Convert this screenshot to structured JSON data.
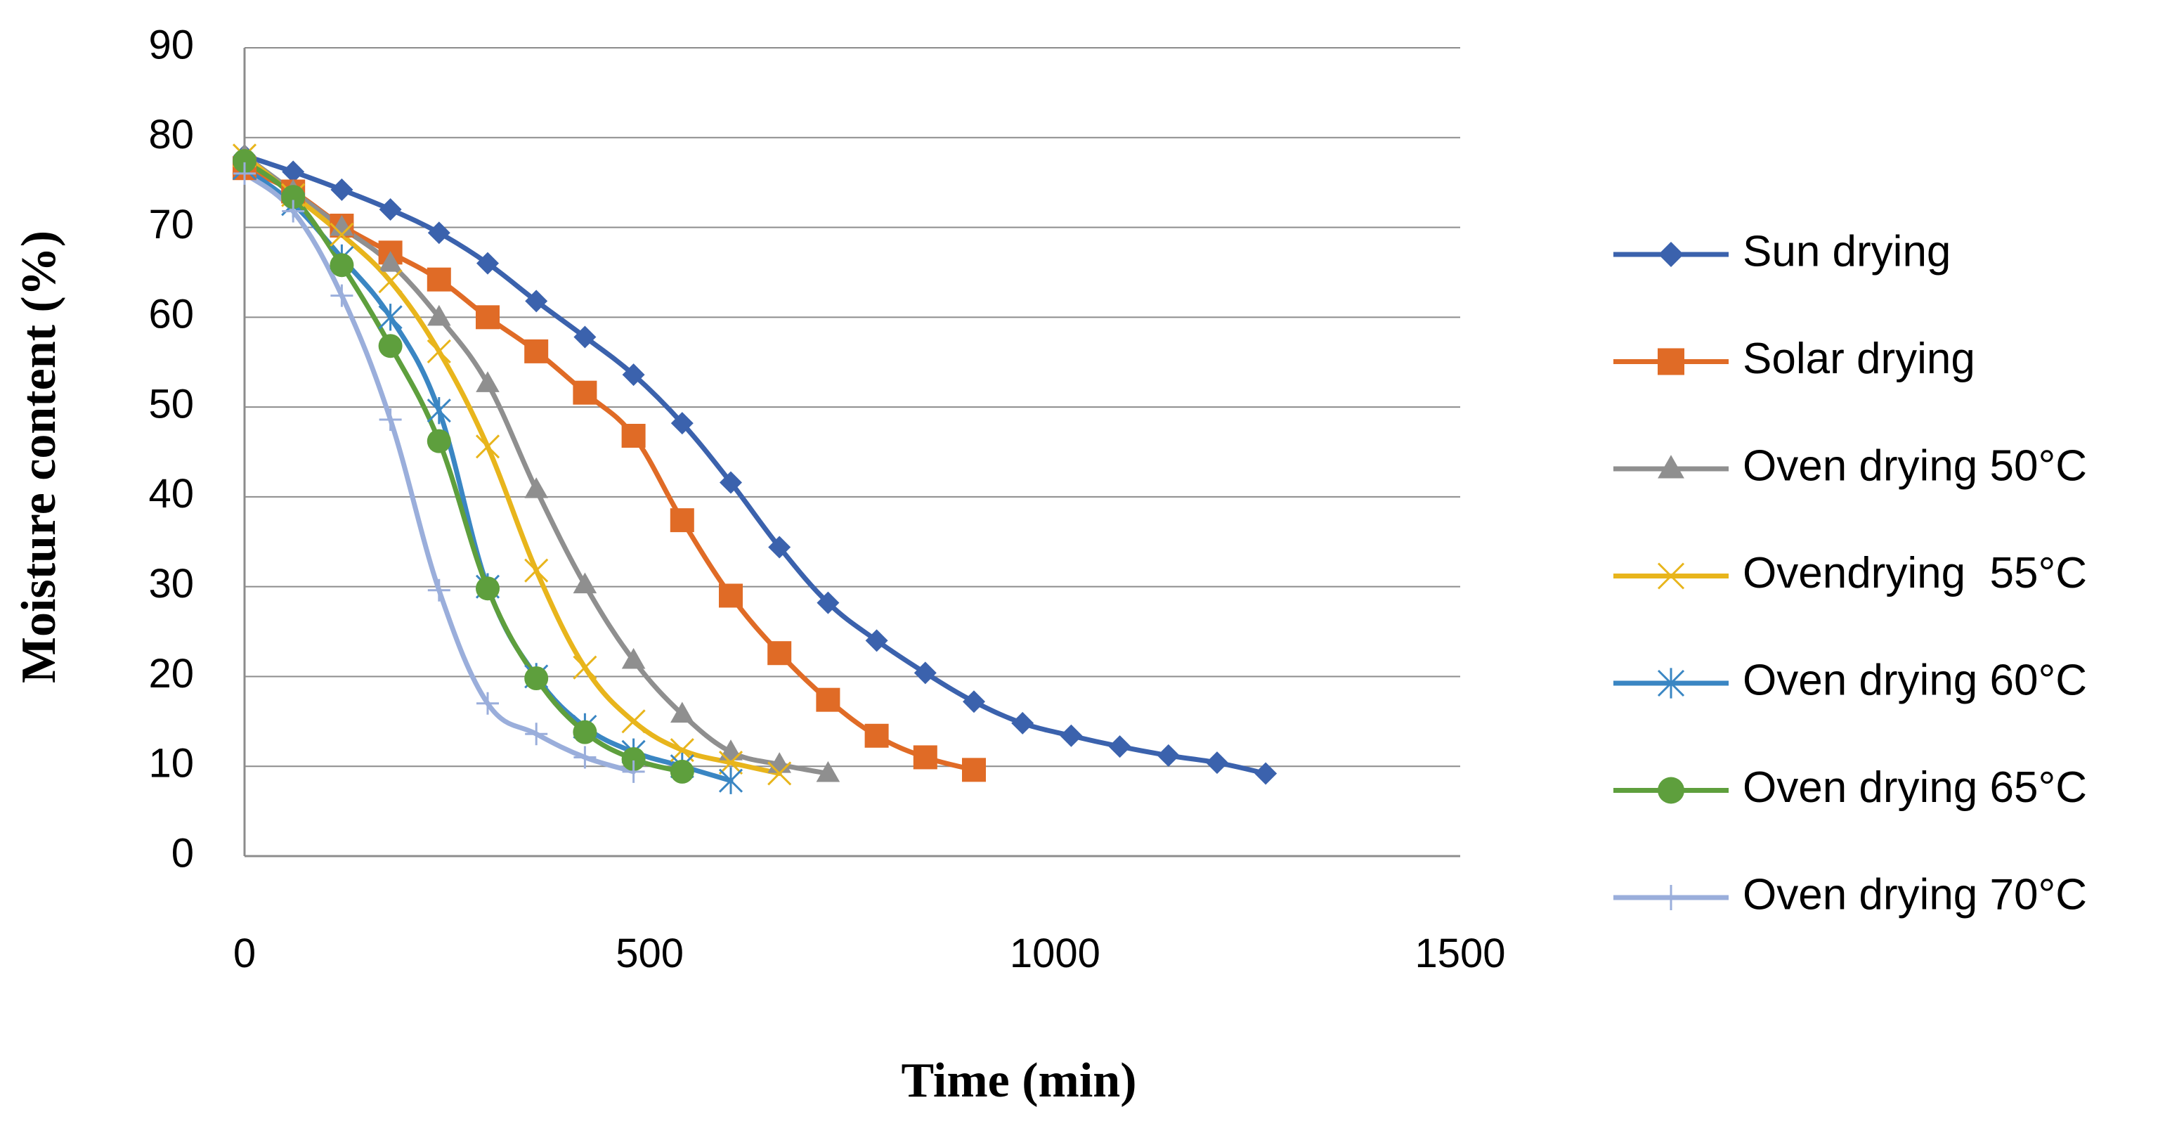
{
  "chart_data": {
    "type": "line",
    "title": "",
    "xlabel": "Time (min)",
    "ylabel": "Moisture content (%)",
    "xlim": [
      0,
      1500
    ],
    "ylim": [
      0,
      90
    ],
    "x_ticks": [
      0,
      500,
      1000,
      1500
    ],
    "y_ticks": [
      0,
      10,
      20,
      30,
      40,
      50,
      60,
      70,
      80,
      90
    ],
    "grid": "horizontal",
    "legend_position": "right",
    "series": [
      {
        "name": "Sun drying",
        "color": "#3b62ad",
        "marker": "diamond",
        "x": [
          0,
          60,
          120,
          180,
          240,
          300,
          360,
          420,
          480,
          540,
          600,
          660,
          720,
          780,
          840,
          900,
          960,
          1020,
          1080,
          1140,
          1200,
          1260
        ],
        "y": [
          78,
          76.2,
          74.2,
          72,
          69.4,
          66,
          61.8,
          57.8,
          53.6,
          48.2,
          41.6,
          34.4,
          28.2,
          24,
          20.4,
          17.2,
          14.8,
          13.4,
          12.2,
          11.2,
          10.4,
          9.2
        ]
      },
      {
        "name": "Solar drying",
        "color": "#e06b26",
        "marker": "square",
        "x": [
          0,
          60,
          120,
          180,
          240,
          300,
          360,
          420,
          480,
          540,
          600,
          660,
          720,
          780,
          840,
          900
        ],
        "y": [
          76.6,
          74,
          70.2,
          67.2,
          64.2,
          60,
          56.2,
          51.6,
          46.8,
          37.4,
          29,
          22.6,
          17.4,
          13.4,
          11,
          9.6
        ]
      },
      {
        "name": "Oven drying 50°C",
        "color": "#8f8f8f",
        "marker": "triangle",
        "x": [
          0,
          60,
          120,
          180,
          240,
          300,
          360,
          420,
          480,
          540,
          600,
          660,
          720
        ],
        "y": [
          78,
          74,
          70,
          66,
          60,
          52.6,
          40.8,
          30.2,
          21.8,
          15.8,
          11.6,
          10.2,
          9.2
        ]
      },
      {
        "name": "Ovendrying  55°C",
        "color": "#e8b51c",
        "marker": "x",
        "x": [
          0,
          60,
          120,
          180,
          240,
          300,
          360,
          420,
          480,
          540,
          600,
          660
        ],
        "y": [
          78,
          73.6,
          69.2,
          64,
          56.2,
          45.6,
          31.8,
          21,
          15,
          11.8,
          10.4,
          9.2
        ]
      },
      {
        "name": "Oven drying 60°C",
        "color": "#3a86c3",
        "marker": "asterisk",
        "x": [
          0,
          60,
          120,
          180,
          240,
          300,
          360,
          420,
          480,
          540,
          600
        ],
        "y": [
          76.6,
          72.6,
          66.6,
          60,
          49.6,
          30,
          20,
          14.4,
          11.6,
          10,
          8.4
        ]
      },
      {
        "name": "Oven drying 65°C",
        "color": "#5e9f3d",
        "marker": "circle",
        "x": [
          0,
          60,
          120,
          180,
          240,
          300,
          360,
          420,
          480,
          540
        ],
        "y": [
          77.4,
          73.4,
          65.8,
          56.8,
          46.2,
          29.8,
          19.8,
          13.8,
          10.8,
          9.4
        ]
      },
      {
        "name": "Oven drying 70°C",
        "color": "#9aaedb",
        "marker": "plus",
        "x": [
          0,
          60,
          120,
          180,
          240,
          300,
          360,
          420,
          480
        ],
        "y": [
          76,
          71.8,
          62.4,
          48.6,
          29.6,
          17,
          13.6,
          11,
          9.4
        ]
      }
    ]
  }
}
